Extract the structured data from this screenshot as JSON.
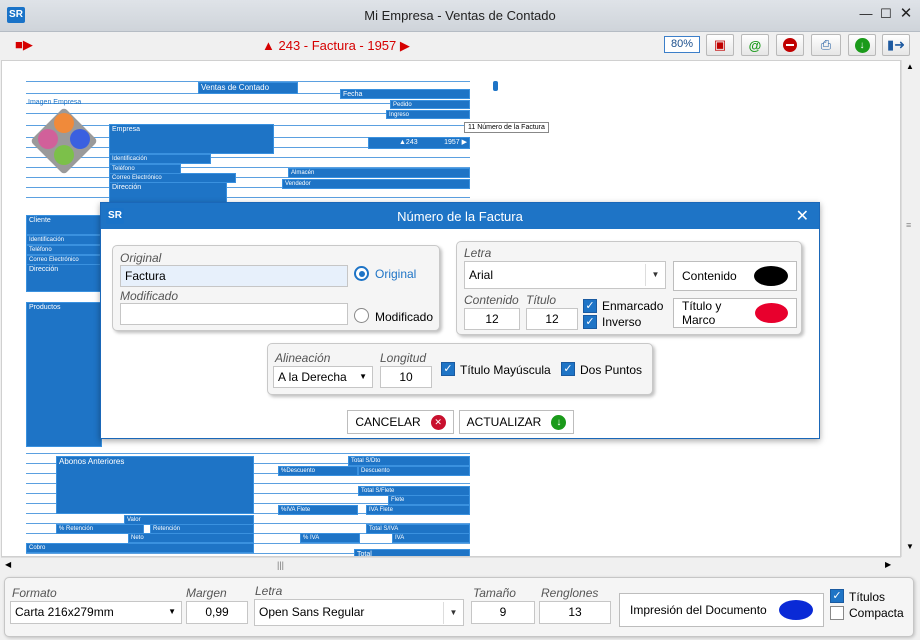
{
  "window": {
    "title": "Mi Empresa - Ventas de Contado",
    "logo": "SR"
  },
  "toolbar": {
    "record": "▲ 243 - Factura - 1957 ▶",
    "zoom": "80%",
    "tools": [
      {
        "name": "save-icon",
        "glyph": "💾",
        "color": "#c00000"
      },
      {
        "name": "email-icon",
        "glyph": "@",
        "color": "#1a9a1a"
      },
      {
        "name": "stop-icon",
        "glyph": "⛔",
        "color": "#c00000"
      },
      {
        "name": "print-icon",
        "glyph": "🖶",
        "color": "#1e5aa0"
      },
      {
        "name": "download-icon",
        "glyph": "⬇",
        "color": "#1a9a1a"
      },
      {
        "name": "exit-icon",
        "glyph": "⎋",
        "color": "#1e5aa0"
      }
    ]
  },
  "canvas": {
    "tooltip": "11 Número de la Factura",
    "labels": {
      "ventas": "Ventas de Contado",
      "fecha": "Fecha",
      "imagen": "Imagen Empresa",
      "pedido": "Pedido",
      "ingreso": "Ingreso",
      "empresa": "Empresa",
      "numero": "▲243",
      "numero2": "1957 ▶",
      "identificacion": "Identificación",
      "telefono": "Teléfono",
      "correo": "Correo Electrónico",
      "almacen": "Almacén",
      "vendedor": "Vendedor",
      "direccion": "Dirección",
      "cliente": "Cliente",
      "c_ident": "Identificación",
      "c_tel": "Teléfono",
      "c_correo": "Correo Electrónico",
      "c_dir": "Dirección",
      "productos": "Productos",
      "abonos": "Abonos Anteriores",
      "total_sdto": "Total S/Dto",
      "pct_desc": "%Descuento",
      "descuento": "Descuento",
      "total_sflete": "Total S/Flete",
      "flete": "Flete",
      "iva_flete_pct": "%IVA Flete",
      "iva_flete": "IVA Flete",
      "valor": "Valor",
      "pct_ret": "% Retención",
      "retencion": "Retención",
      "total_siva": "Total S/IVA",
      "neto": "Neto",
      "pct_iva": "% IVA",
      "iva": "IVA",
      "cobro": "Cobro",
      "total": "Total"
    }
  },
  "dialog": {
    "title": "Número de la Factura",
    "original_label": "Original",
    "original_value": "Factura",
    "modificado_label": "Modificado",
    "modificado_value": "",
    "radio_original": "Original",
    "radio_modificado": "Modificado",
    "letra_label": "Letra",
    "letra_value": "Arial",
    "contenido_label": "Contenido",
    "titulo_label": "Título",
    "contenido_size": "12",
    "titulo_size": "12",
    "enmarcado": "Enmarcado",
    "inverso": "Inverso",
    "btn_contenido": "Contenido",
    "btn_titulo_marco": "Título y Marco",
    "color_contenido": "#000000",
    "color_titulo": "#e8002d",
    "alineacion_label": "Alineación",
    "alineacion_value": "A la Derecha",
    "longitud_label": "Longitud",
    "longitud_value": "10",
    "titulo_mayuscula": "Título Mayúscula",
    "dos_puntos": "Dos Puntos",
    "cancelar": "CANCELAR",
    "actualizar": "ACTUALIZAR"
  },
  "bottom": {
    "formato_label": "Formato",
    "formato_value": "Carta 216x279mm",
    "margen_label": "Margen",
    "margen_value": "0,99",
    "letra_label": "Letra",
    "letra_value": "Open Sans Regular",
    "tamano_label": "Tamaño",
    "tamano_value": "9",
    "renglones_label": "Renglones",
    "renglones_value": "13",
    "impresion": "Impresión del Documento",
    "impresion_color": "#0a2ad6",
    "titulos": "Títulos",
    "compacta": "Compacta"
  },
  "scroll": {
    "grip": "|||"
  }
}
